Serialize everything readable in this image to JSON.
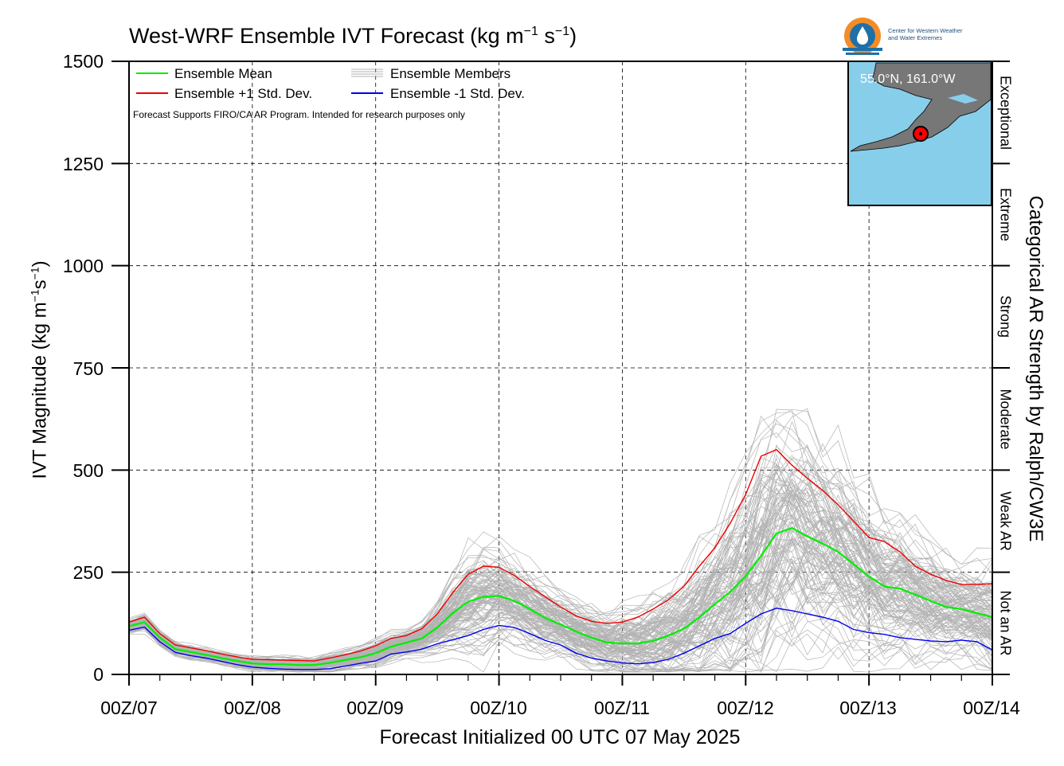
{
  "header": {
    "title_main": "West-WRF Ensemble IVT Forecast (kg m",
    "title_exp1": "−1",
    "title_mid": " s",
    "title_exp2": "−1",
    "title_end": ")"
  },
  "logo": {
    "line1": "Center for Western Weather",
    "line2": "and Water Extremes",
    "icon": "water-drop-logo-icon"
  },
  "inset": {
    "location_label": "55.0°N, 161.0°W"
  },
  "colors": {
    "mean": "#00ee00",
    "plus": "#ee0000",
    "minus": "#0000ee",
    "members": "#b3b3b3",
    "sea": "#87ceeb",
    "land": "#777777"
  },
  "chart_data": {
    "type": "line",
    "title": "West-WRF Ensemble IVT Forecast (kg m−1 s−1)",
    "xlabel": "Forecast Initialized 00 UTC 07 May 2025",
    "ylabel_main": "IVT Magnitude (kg m",
    "ylabel_exp1": "−1",
    "ylabel_mid": "s",
    "ylabel_exp2": "−1",
    "ylabel_end": ")",
    "right_label": "Categorical AR Strength by Ralph/CW3E",
    "note": "Forecast Supports FIRO/CA AR Program. Intended for research purposes only",
    "ylim": [
      0,
      1500
    ],
    "xlim_hours": [
      0,
      168
    ],
    "yticks": [
      "0",
      "250",
      "500",
      "750",
      "1000",
      "1250",
      "1500"
    ],
    "xtick_labels": [
      "00Z/07",
      "00Z/08",
      "00Z/09",
      "00Z/10",
      "00Z/11",
      "00Z/12",
      "00Z/13",
      "00Z/14"
    ],
    "grid": true,
    "legend_position": "top-left",
    "legend": {
      "mean": "Ensemble Mean",
      "plus": "Ensemble +1 Std. Dev.",
      "members": "Ensemble Members",
      "minus": "Ensemble -1 Std. Dev."
    },
    "categories_ar": [
      "Not an AR",
      "Weak AR",
      "Moderate",
      "Strong",
      "Extreme",
      "Exceptional"
    ],
    "category_bounds": [
      0,
      250,
      500,
      750,
      1000,
      1250,
      1500
    ],
    "x_hours": [
      0,
      3,
      6,
      9,
      12,
      15,
      18,
      21,
      24,
      27,
      30,
      33,
      36,
      39,
      42,
      45,
      48,
      51,
      54,
      57,
      60,
      63,
      66,
      69,
      72,
      75,
      78,
      81,
      84,
      87,
      90,
      93,
      96,
      99,
      102,
      105,
      108,
      111,
      114,
      117,
      120,
      123,
      126,
      129,
      132,
      135,
      138,
      141,
      144,
      147,
      150,
      153,
      156,
      159,
      162,
      165,
      168
    ],
    "series": [
      {
        "name": "Ensemble Mean",
        "key": "mean",
        "values": [
          118,
          128,
          90,
          62,
          55,
          48,
          40,
          33,
          27,
          25,
          25,
          23,
          23,
          28,
          35,
          42,
          52,
          68,
          78,
          88,
          115,
          150,
          178,
          190,
          192,
          180,
          160,
          138,
          122,
          105,
          90,
          78,
          76,
          76,
          82,
          95,
          112,
          140,
          172,
          202,
          240,
          290,
          345,
          358,
          338,
          320,
          300,
          270,
          240,
          215,
          210,
          195,
          180,
          165,
          160,
          150,
          140
        ]
      },
      {
        "name": "Ensemble +1 Std. Dev.",
        "key": "plus",
        "values": [
          128,
          140,
          100,
          72,
          65,
          58,
          50,
          43,
          37,
          36,
          35,
          34,
          33,
          40,
          48,
          57,
          70,
          88,
          95,
          112,
          148,
          200,
          245,
          265,
          262,
          242,
          215,
          190,
          165,
          143,
          130,
          125,
          128,
          140,
          160,
          183,
          216,
          265,
          310,
          370,
          440,
          534,
          550,
          512,
          480,
          450,
          415,
          375,
          335,
          325,
          300,
          265,
          245,
          230,
          220,
          220,
          222
        ]
      },
      {
        "name": "Ensemble -1 Std. Dev.",
        "key": "minus",
        "values": [
          108,
          116,
          80,
          54,
          46,
          40,
          32,
          24,
          18,
          15,
          13,
          12,
          12,
          14,
          20,
          27,
          33,
          50,
          55,
          62,
          75,
          85,
          95,
          110,
          120,
          115,
          100,
          83,
          72,
          52,
          40,
          33,
          28,
          26,
          29,
          37,
          52,
          70,
          88,
          100,
          125,
          148,
          162,
          156,
          148,
          140,
          130,
          110,
          102,
          98,
          90,
          86,
          82,
          80,
          84,
          80,
          60
        ]
      }
    ]
  }
}
